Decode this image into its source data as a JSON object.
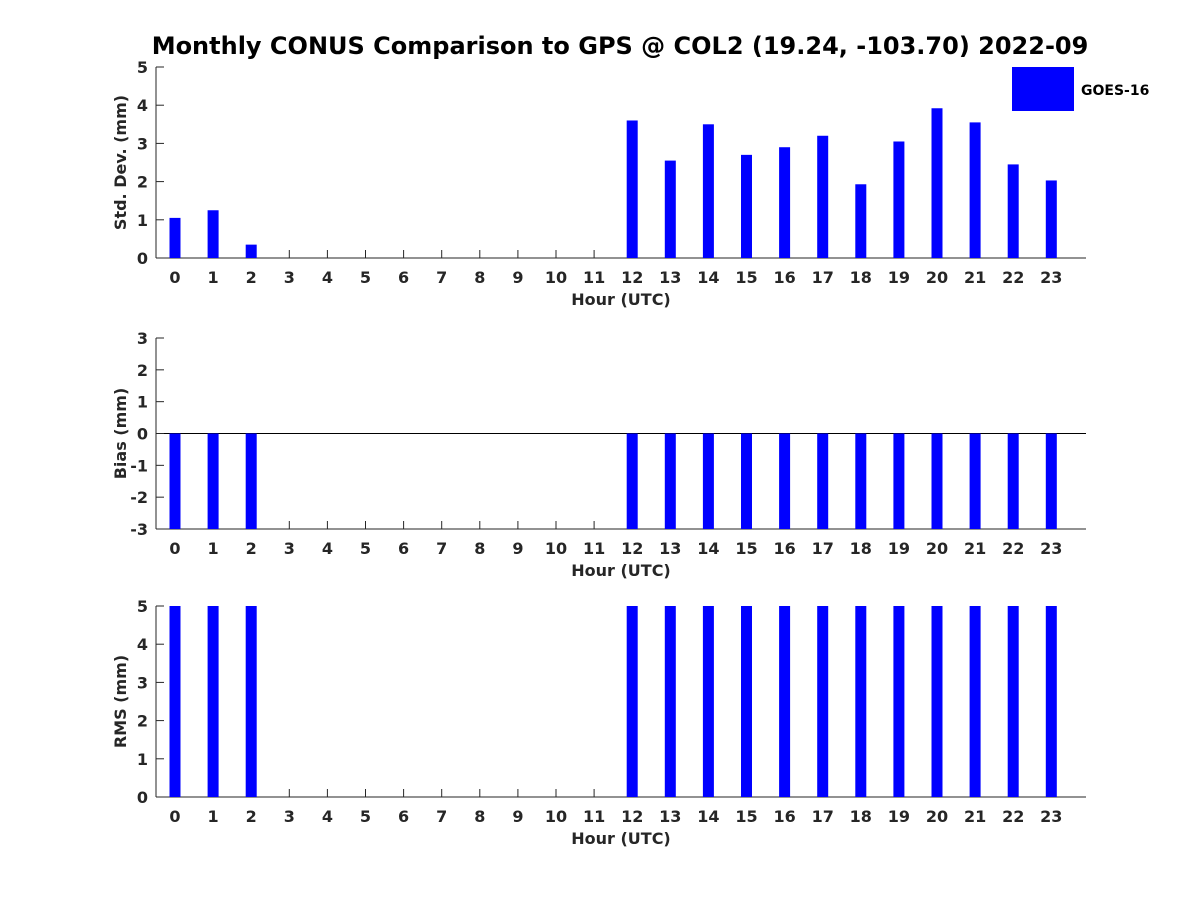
{
  "title": "Monthly CONUS Comparison to GPS @ COL2 (19.24, -103.70) 2022-09",
  "legend": {
    "label": "GOES-16",
    "color": "#0000ff"
  },
  "chart_data": [
    {
      "type": "bar",
      "xlabel": "Hour (UTC)",
      "ylabel": "Std. Dev. (mm)",
      "ylim": [
        0,
        5
      ],
      "yticks": [
        "0",
        "1",
        "2",
        "3",
        "4",
        "5"
      ],
      "categories": [
        "0",
        "1",
        "2",
        "3",
        "4",
        "5",
        "6",
        "7",
        "8",
        "9",
        "10",
        "11",
        "12",
        "13",
        "14",
        "15",
        "16",
        "17",
        "18",
        "19",
        "20",
        "21",
        "22",
        "23"
      ],
      "series": [
        {
          "name": "GOES-16",
          "values": [
            1.05,
            1.25,
            0.35,
            null,
            null,
            null,
            null,
            null,
            null,
            null,
            null,
            null,
            3.6,
            2.55,
            3.5,
            2.7,
            2.9,
            3.2,
            1.93,
            3.05,
            3.92,
            3.55,
            2.45,
            2.03
          ]
        }
      ]
    },
    {
      "type": "bar",
      "xlabel": "Hour (UTC)",
      "ylabel": "Bias (mm)",
      "ylim": [
        -3,
        3
      ],
      "yticks": [
        "-3",
        "-2",
        "-1",
        "0",
        "1",
        "2",
        "3"
      ],
      "categories": [
        "0",
        "1",
        "2",
        "3",
        "4",
        "5",
        "6",
        "7",
        "8",
        "9",
        "10",
        "11",
        "12",
        "13",
        "14",
        "15",
        "16",
        "17",
        "18",
        "19",
        "20",
        "21",
        "22",
        "23"
      ],
      "series": [
        {
          "name": "GOES-16",
          "values": [
            -3,
            -3,
            -3,
            null,
            null,
            null,
            null,
            null,
            null,
            null,
            null,
            null,
            -3,
            -3,
            -3,
            -3,
            -3,
            -3,
            -3,
            -3,
            -3,
            -3,
            -3,
            -3
          ]
        }
      ]
    },
    {
      "type": "bar",
      "xlabel": "Hour (UTC)",
      "ylabel": "RMS (mm)",
      "ylim": [
        0,
        5
      ],
      "yticks": [
        "0",
        "1",
        "2",
        "3",
        "4",
        "5"
      ],
      "categories": [
        "0",
        "1",
        "2",
        "3",
        "4",
        "5",
        "6",
        "7",
        "8",
        "9",
        "10",
        "11",
        "12",
        "13",
        "14",
        "15",
        "16",
        "17",
        "18",
        "19",
        "20",
        "21",
        "22",
        "23"
      ],
      "series": [
        {
          "name": "GOES-16",
          "values": [
            5,
            5,
            5,
            null,
            null,
            null,
            null,
            null,
            null,
            null,
            null,
            null,
            5,
            5,
            5,
            5,
            5,
            5,
            5,
            5,
            5,
            5,
            5,
            5
          ]
        }
      ]
    }
  ]
}
